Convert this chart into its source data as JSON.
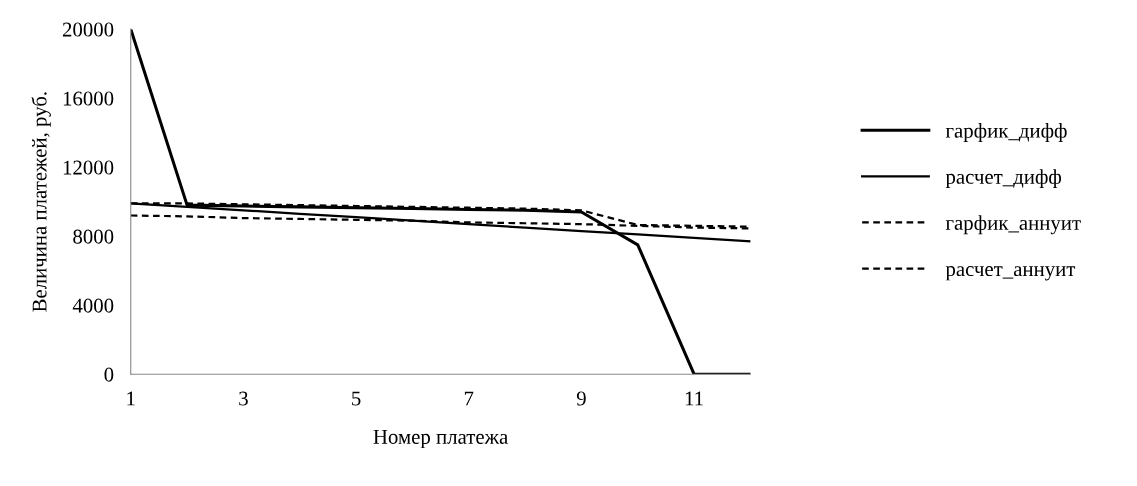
{
  "chart_data": {
    "type": "line",
    "xlabel": "Номер платежа",
    "ylabel": "Величина платежей, руб.",
    "x": [
      1,
      2,
      3,
      4,
      5,
      6,
      7,
      8,
      9,
      10,
      11,
      12
    ],
    "xlim": [
      1,
      12
    ],
    "xticks": [
      1,
      3,
      5,
      7,
      9,
      11
    ],
    "ylim": [
      0,
      20000
    ],
    "yticks": [
      0,
      4000,
      8000,
      12000,
      16000,
      20000
    ],
    "grid": false,
    "legend": "right",
    "marker": "none",
    "series": [
      {
        "name": "гарфик_дифф",
        "color": "#000000",
        "line_style": "solid",
        "values": [
          20000,
          9800,
          9750,
          9700,
          9650,
          9600,
          9550,
          9500,
          9400,
          7500,
          0,
          0
        ]
      },
      {
        "name": "расчет_дифф",
        "color": "#000000",
        "line_style": "solid",
        "values": [
          9900,
          9700,
          9500,
          9300,
          9100,
          8900,
          8700,
          8500,
          8300,
          8100,
          7900,
          7700
        ]
      },
      {
        "name": "гарфик_аннуит",
        "color": "#000000",
        "line_style": "dashed",
        "values": [
          9900,
          9900,
          9850,
          9800,
          9750,
          9700,
          9650,
          9600,
          9500,
          8650,
          8600,
          8550
        ]
      },
      {
        "name": "расчет_аннуит",
        "color": "#000000",
        "line_style": "dashed",
        "values": [
          9200,
          9150,
          9050,
          9000,
          8950,
          8900,
          8800,
          8750,
          8700,
          8600,
          8500,
          8450
        ]
      }
    ]
  }
}
